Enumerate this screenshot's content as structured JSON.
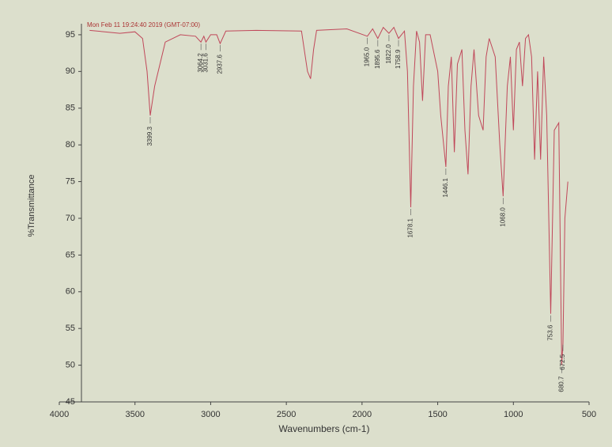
{
  "chart_data": {
    "type": "line",
    "title": "Mon Feb 11 19:24:40 2019 (GMT-07:00)",
    "x_label": "Wavenumbers (cm-1)",
    "y_label": "%Transmittance",
    "color": "#c0485a",
    "x": [
      3800,
      3700,
      3600,
      3500,
      3450,
      3420,
      3399.3,
      3370,
      3300,
      3200,
      3100,
      3064.2,
      3045,
      3031.6,
      3000,
      2960,
      2937.6,
      2900,
      2700,
      2400,
      2360,
      2340,
      2320,
      2300,
      2100,
      1965.0,
      1930,
      1895.6,
      1860,
      1822.0,
      1790,
      1758.9,
      1720,
      1700,
      1678.1,
      1660,
      1640,
      1620,
      1600,
      1580,
      1550,
      1500,
      1480,
      1446.1,
      1430,
      1410,
      1390,
      1370,
      1340,
      1320,
      1300,
      1280,
      1260,
      1230,
      1200,
      1180,
      1160,
      1120,
      1090,
      1068.0,
      1040,
      1020,
      1000,
      980,
      960,
      940,
      920,
      900,
      880,
      860,
      840,
      820,
      800,
      780,
      753.6,
      730,
      700,
      680.7,
      672.5,
      660,
      640
    ],
    "values": [
      95.6,
      95.4,
      95.2,
      95.4,
      94.5,
      90,
      84,
      88,
      94,
      95,
      94.8,
      94,
      94.8,
      94,
      95,
      95,
      93.8,
      95.5,
      95.6,
      95.5,
      90,
      89,
      93,
      95.6,
      95.8,
      94.8,
      95.8,
      94.5,
      96,
      95.2,
      96,
      94.5,
      95.5,
      90,
      71.5,
      88,
      95.5,
      94,
      86,
      95,
      95,
      90,
      84,
      77,
      88,
      92,
      79,
      91,
      93,
      82,
      76,
      88,
      93,
      84,
      82,
      92,
      94.5,
      92,
      80,
      73,
      88,
      92,
      82,
      93,
      94,
      88,
      94.5,
      95,
      92,
      78,
      90,
      78,
      92,
      84,
      57,
      82,
      83,
      50,
      53,
      70,
      75
    ],
    "annotations": [
      {
        "x": 3399.3,
        "label": "3399.3"
      },
      {
        "x": 3064.2,
        "label": "3064.2"
      },
      {
        "x": 3031.6,
        "label": "3031.6"
      },
      {
        "x": 2937.6,
        "label": "2937.6"
      },
      {
        "x": 1965.0,
        "label": "1965.0"
      },
      {
        "x": 1895.6,
        "label": "1895.6"
      },
      {
        "x": 1822.0,
        "label": "1822.0"
      },
      {
        "x": 1758.9,
        "label": "1758.9"
      },
      {
        "x": 1678.1,
        "label": "1678.1"
      },
      {
        "x": 1446.1,
        "label": "1446.1"
      },
      {
        "x": 1068.0,
        "label": "1068.0"
      },
      {
        "x": 753.6,
        "label": "753.6"
      },
      {
        "x": 680.7,
        "label": "680.7"
      },
      {
        "x": 672.5,
        "label": "672.5"
      }
    ],
    "xlim": [
      4000,
      500
    ],
    "xticks": [
      4000,
      3500,
      3000,
      2500,
      2000,
      1500,
      1000,
      500
    ],
    "ylim": [
      45,
      96.5
    ],
    "yticks": [
      45,
      50,
      55,
      60,
      65,
      70,
      75,
      80,
      85,
      90,
      95
    ],
    "grid": false
  }
}
